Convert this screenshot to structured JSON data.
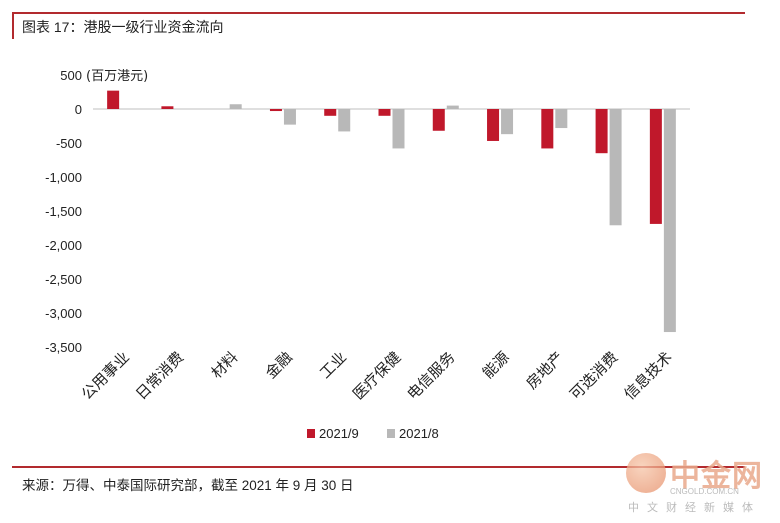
{
  "header": {
    "title": "图表 17：港股一级行业资金流向"
  },
  "footer": {
    "source": "来源：万得、中泰国际研究部，截至 2021 年 9 月 30 日"
  },
  "watermark": {
    "brand": "中金网",
    "url": "CNGOLD.COM.CN",
    "sub": "中文财经新媒体"
  },
  "colors": {
    "series1": "#c0182b",
    "series2": "#b8b8b8"
  },
  "chart_data": {
    "type": "bar",
    "ylabel": "(百万港元)",
    "ylim": [
      -3500,
      500
    ],
    "yticks": [
      500,
      0,
      -500,
      -1000,
      -1500,
      -2000,
      -2500,
      -3000,
      -3500
    ],
    "ytick_labels": [
      "500",
      "0",
      "-500",
      "-1,000",
      "-1,500",
      "-2,000",
      "-2,500",
      "-3,000",
      "-3,500"
    ],
    "categories": [
      "公用事业",
      "日常消费",
      "材料",
      "金融",
      "工业",
      "医疗保健",
      "电信服务",
      "能源",
      "房地产",
      "可选消费",
      "信息技术"
    ],
    "series": [
      {
        "name": "2021/9",
        "values": [
          270,
          40,
          0,
          -30,
          -100,
          -100,
          -320,
          -470,
          -580,
          -650,
          -1690
        ]
      },
      {
        "name": "2021/8",
        "values": [
          0,
          0,
          70,
          -230,
          -330,
          -580,
          50,
          -370,
          -280,
          -1710,
          -3280
        ]
      }
    ],
    "legend": "bottom",
    "grid": false
  }
}
